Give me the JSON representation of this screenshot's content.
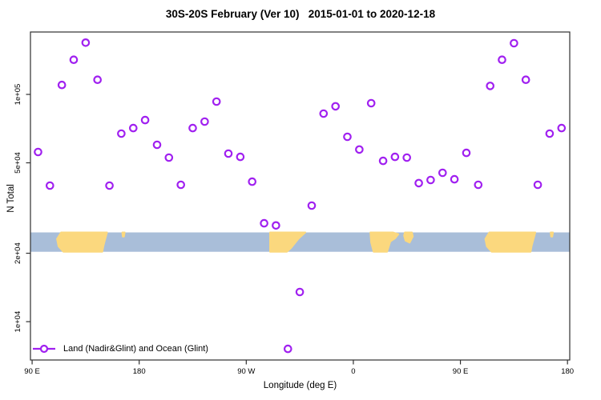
{
  "title": "30S-20S February (Ver 10)   2015-01-01 to 2020-12-18",
  "x_axis_title": "Longitude (deg E)",
  "y_axis_title": "N Total",
  "legend": {
    "label": "Land (Nadir&Glint) and Ocean (Glint)",
    "marker": "open-circle-on-line"
  },
  "colors": {
    "marker": "#A020F0",
    "ocean": "#A9BED9",
    "land": "#FBD87E",
    "axis": "#2F2F2F",
    "text": "#000000"
  },
  "chart_data": {
    "type": "scatter",
    "title": "30S-20S February (Ver 10)   2015-01-01 to 2020-12-18",
    "xlabel": "Longitude (deg E)",
    "ylabel": "N Total",
    "y_scale": "log",
    "grid": false,
    "legend_position": "bottom-left-inside",
    "x_axis": {
      "min": 88.6,
      "max": 541.9,
      "ticks": [
        {
          "v": 90,
          "label": "90 E"
        },
        {
          "v": 180,
          "label": "180"
        },
        {
          "v": 270,
          "label": "90 W"
        },
        {
          "v": 360,
          "label": "0"
        },
        {
          "v": 450,
          "label": "90 E"
        },
        {
          "v": 540,
          "label": "180"
        }
      ]
    },
    "y_axis": {
      "min": 6780,
      "max": 188200,
      "ticks": [
        {
          "v": 100000,
          "label": "1e+05"
        },
        {
          "v": 50000,
          "label": "5e+04"
        },
        {
          "v": 20000,
          "label": "2e+04"
        },
        {
          "v": 10000,
          "label": "1e+04"
        }
      ]
    },
    "series": [
      {
        "name": "Land (Nadir&Glint) and Ocean (Glint)",
        "marker": "open-circle",
        "points": [
          [
            95,
            55800
          ],
          [
            105,
            39700
          ],
          [
            115,
            110000
          ],
          [
            125,
            142000
          ],
          [
            135,
            169000
          ],
          [
            145,
            116000
          ],
          [
            155,
            39700
          ],
          [
            165,
            67200
          ],
          [
            175,
            71100
          ],
          [
            185,
            77100
          ],
          [
            195,
            60000
          ],
          [
            205,
            52700
          ],
          [
            215,
            40000
          ],
          [
            225,
            71100
          ],
          [
            235,
            75900
          ],
          [
            245,
            93000
          ],
          [
            255,
            54900
          ],
          [
            265,
            53100
          ],
          [
            275,
            41300
          ],
          [
            285,
            27100
          ],
          [
            295,
            26500
          ],
          [
            305,
            7590
          ],
          [
            315,
            13500
          ],
          [
            325,
            32400
          ],
          [
            335,
            82300
          ],
          [
            345,
            88600
          ],
          [
            355,
            65100
          ],
          [
            365,
            57200
          ],
          [
            375,
            91500
          ],
          [
            385,
            51000
          ],
          [
            395,
            53100
          ],
          [
            405,
            52700
          ],
          [
            415,
            40700
          ],
          [
            425,
            42000
          ],
          [
            435,
            45200
          ],
          [
            445,
            42300
          ],
          [
            455,
            55300
          ],
          [
            465,
            40000
          ],
          [
            475,
            109000
          ],
          [
            485,
            142000
          ],
          [
            495,
            168000
          ],
          [
            505,
            116000
          ],
          [
            515,
            40000
          ],
          [
            525,
            67200
          ],
          [
            535,
            71100
          ]
        ]
      }
    ],
    "map_strip": {
      "description": "30S-20S latitude band world map strip, ocean vs land",
      "n_top": 24700,
      "n_bottom": 20300,
      "land_segments": [
        {
          "name": "australia",
          "points": [
            [
              114.3,
              0
            ],
            [
              153,
              0
            ],
            [
              151.3,
              0.38
            ],
            [
              150,
              0.68
            ],
            [
              149,
              1
            ],
            [
              116.3,
              1
            ],
            [
              112.2,
              0.72
            ],
            [
              110.9,
              0.34
            ]
          ]
        },
        {
          "name": "new-caledonia",
          "points": [
            [
              165.8,
              0
            ],
            [
              167.8,
              0
            ],
            [
              167.2,
              0.22
            ],
            [
              166.2,
              0.22
            ]
          ]
        },
        {
          "name": "south-america",
          "points": [
            [
              290,
              0
            ],
            [
              319.7,
              0
            ],
            [
              313.7,
              0.34
            ],
            [
              310.3,
              0.6
            ],
            [
              307.6,
              0.81
            ],
            [
              304.2,
              1
            ],
            [
              290,
              1
            ]
          ]
        },
        {
          "name": "africa",
          "points": [
            [
              374.3,
              0
            ],
            [
              393.2,
              0
            ],
            [
              397.9,
              0.09
            ],
            [
              395.2,
              0.3
            ],
            [
              391.1,
              0.47
            ],
            [
              389.8,
              0.72
            ],
            [
              388.4,
              1
            ],
            [
              377,
              1
            ],
            [
              374.9,
              0.51
            ]
          ]
        },
        {
          "name": "madagascar",
          "points": [
            [
              403.3,
              0
            ],
            [
              409.3,
              0
            ],
            [
              410,
              0.21
            ],
            [
              407.3,
              0.53
            ],
            [
              403.9,
              0.43
            ],
            [
              402.6,
              0.17
            ]
          ]
        },
        {
          "name": "australia-wrap",
          "points": [
            [
              474.3,
              0
            ],
            [
              513,
              0
            ],
            [
              511.3,
              0.38
            ],
            [
              510,
              0.68
            ],
            [
              509,
              1
            ],
            [
              476.3,
              1
            ],
            [
              472.2,
              0.72
            ],
            [
              470.9,
              0.34
            ]
          ]
        },
        {
          "name": "new-caledonia-wrap",
          "points": [
            [
              525.8,
              0
            ],
            [
              527.8,
              0
            ],
            [
              527.2,
              0.22
            ],
            [
              526.2,
              0.22
            ]
          ]
        }
      ]
    }
  }
}
